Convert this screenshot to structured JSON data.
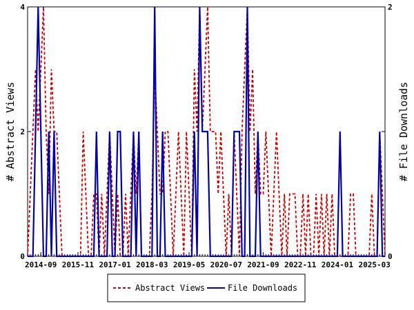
{
  "chart_data": {
    "type": "line",
    "title": "",
    "ylabel_left": "# Abstract Views",
    "ylabel_right": "# File Downloads",
    "ylim_left": [
      0,
      4
    ],
    "ylim_right": [
      0,
      2
    ],
    "yticks_left": [
      "0",
      "2",
      "4"
    ],
    "yticks_right": [
      "0",
      "1",
      "2"
    ],
    "x_range": [
      "2014-04",
      "2025-07"
    ],
    "x_tick_labels": [
      "2014-09",
      "2015-11",
      "2017-01",
      "2018-03",
      "2019-05",
      "2020-07",
      "2021-09",
      "2022-11",
      "2024-01",
      "2025-03"
    ],
    "grid": false,
    "legend_position": "bottom",
    "series": [
      {
        "name": "Abstract Views",
        "axis": "left",
        "color": "#cc0000",
        "style": "dashed",
        "points": [
          [
            "2014-04",
            0
          ],
          [
            "2014-05",
            1
          ],
          [
            "2014-06",
            2
          ],
          [
            "2014-07",
            3
          ],
          [
            "2014-08",
            2
          ],
          [
            "2014-09",
            3
          ],
          [
            "2014-10",
            4
          ],
          [
            "2014-11",
            2
          ],
          [
            "2014-12",
            1
          ],
          [
            "2015-01",
            3
          ],
          [
            "2015-02",
            2
          ],
          [
            "2015-03",
            2
          ],
          [
            "2015-04",
            1
          ],
          [
            "2015-05",
            0
          ],
          [
            "2015-06",
            0
          ],
          [
            "2015-07",
            0
          ],
          [
            "2015-08",
            0
          ],
          [
            "2015-09",
            0
          ],
          [
            "2015-10",
            0
          ],
          [
            "2015-11",
            0
          ],
          [
            "2015-12",
            0
          ],
          [
            "2016-01",
            2
          ],
          [
            "2016-02",
            1
          ],
          [
            "2016-03",
            0
          ],
          [
            "2016-04",
            0
          ],
          [
            "2016-05",
            1
          ],
          [
            "2016-06",
            1
          ],
          [
            "2016-07",
            0
          ],
          [
            "2016-08",
            1
          ],
          [
            "2016-09",
            0
          ],
          [
            "2016-10",
            1
          ],
          [
            "2016-11",
            2
          ],
          [
            "2016-12",
            1
          ],
          [
            "2017-01",
            0
          ],
          [
            "2017-02",
            1
          ],
          [
            "2017-03",
            0
          ],
          [
            "2017-04",
            0
          ],
          [
            "2017-05",
            1
          ],
          [
            "2017-06",
            0
          ],
          [
            "2017-07",
            1
          ],
          [
            "2017-08",
            2
          ],
          [
            "2017-09",
            1
          ],
          [
            "2017-10",
            2
          ],
          [
            "2017-11",
            0
          ],
          [
            "2017-12",
            0
          ],
          [
            "2018-01",
            0
          ],
          [
            "2018-02",
            0
          ],
          [
            "2018-03",
            1
          ],
          [
            "2018-04",
            3
          ],
          [
            "2018-05",
            2
          ],
          [
            "2018-06",
            1
          ],
          [
            "2018-07",
            1
          ],
          [
            "2018-08",
            2
          ],
          [
            "2018-09",
            2
          ],
          [
            "2018-10",
            1
          ],
          [
            "2018-11",
            0
          ],
          [
            "2018-12",
            1
          ],
          [
            "2019-01",
            2
          ],
          [
            "2019-02",
            1
          ],
          [
            "2019-03",
            0
          ],
          [
            "2019-04",
            2
          ],
          [
            "2019-05",
            1
          ],
          [
            "2019-06",
            0
          ],
          [
            "2019-07",
            3
          ],
          [
            "2019-08",
            2
          ],
          [
            "2019-09",
            4
          ],
          [
            "2019-10",
            2
          ],
          [
            "2019-11",
            3
          ],
          [
            "2019-12",
            4
          ],
          [
            "2020-01",
            2
          ],
          [
            "2020-02",
            2
          ],
          [
            "2020-03",
            2
          ],
          [
            "2020-04",
            1
          ],
          [
            "2020-05",
            2
          ],
          [
            "2020-06",
            1
          ],
          [
            "2020-07",
            0
          ],
          [
            "2020-08",
            1
          ],
          [
            "2020-09",
            0
          ],
          [
            "2020-10",
            2
          ],
          [
            "2020-11",
            1
          ],
          [
            "2020-12",
            0
          ],
          [
            "2021-01",
            2
          ],
          [
            "2021-02",
            3
          ],
          [
            "2021-03",
            4
          ],
          [
            "2021-04",
            2
          ],
          [
            "2021-05",
            3
          ],
          [
            "2021-06",
            1
          ],
          [
            "2021-07",
            2
          ],
          [
            "2021-08",
            1
          ],
          [
            "2021-09",
            1
          ],
          [
            "2021-10",
            2
          ],
          [
            "2021-11",
            1
          ],
          [
            "2021-12",
            0
          ],
          [
            "2022-01",
            1
          ],
          [
            "2022-02",
            2
          ],
          [
            "2022-03",
            1
          ],
          [
            "2022-04",
            0
          ],
          [
            "2022-05",
            1
          ],
          [
            "2022-06",
            0
          ],
          [
            "2022-07",
            1
          ],
          [
            "2022-08",
            1
          ],
          [
            "2022-09",
            1
          ],
          [
            "2022-10",
            0
          ],
          [
            "2022-11",
            0
          ],
          [
            "2022-12",
            1
          ],
          [
            "2023-01",
            0
          ],
          [
            "2023-02",
            1
          ],
          [
            "2023-03",
            0
          ],
          [
            "2023-04",
            0
          ],
          [
            "2023-05",
            1
          ],
          [
            "2023-06",
            0
          ],
          [
            "2023-07",
            1
          ],
          [
            "2023-08",
            0
          ],
          [
            "2023-09",
            1
          ],
          [
            "2023-10",
            0
          ],
          [
            "2023-11",
            1
          ],
          [
            "2023-12",
            0
          ],
          [
            "2024-01",
            0
          ],
          [
            "2024-02",
            0
          ],
          [
            "2024-03",
            0
          ],
          [
            "2024-04",
            0
          ],
          [
            "2024-05",
            0
          ],
          [
            "2024-06",
            1
          ],
          [
            "2024-07",
            1
          ],
          [
            "2024-08",
            0
          ],
          [
            "2024-09",
            0
          ],
          [
            "2024-10",
            0
          ],
          [
            "2024-11",
            0
          ],
          [
            "2024-12",
            0
          ],
          [
            "2025-01",
            0
          ],
          [
            "2025-02",
            1
          ],
          [
            "2025-03",
            0
          ],
          [
            "2025-04",
            0
          ],
          [
            "2025-05",
            2
          ],
          [
            "2025-06",
            1
          ],
          [
            "2025-07",
            0
          ]
        ]
      },
      {
        "name": "File Downloads",
        "axis": "right",
        "color": "#0000aa",
        "style": "solid",
        "points": [
          [
            "2014-04",
            0
          ],
          [
            "2014-05",
            0
          ],
          [
            "2014-06",
            0
          ],
          [
            "2014-07",
            1
          ],
          [
            "2014-08",
            2
          ],
          [
            "2014-09",
            1
          ],
          [
            "2014-10",
            0
          ],
          [
            "2014-11",
            0
          ],
          [
            "2014-12",
            1
          ],
          [
            "2015-01",
            0
          ],
          [
            "2015-02",
            1
          ],
          [
            "2015-03",
            0
          ],
          [
            "2015-04",
            0
          ],
          [
            "2015-05",
            0
          ],
          [
            "2015-06",
            0
          ],
          [
            "2015-07",
            0
          ],
          [
            "2015-08",
            0
          ],
          [
            "2015-09",
            0
          ],
          [
            "2015-10",
            0
          ],
          [
            "2015-11",
            0
          ],
          [
            "2015-12",
            0
          ],
          [
            "2016-01",
            0
          ],
          [
            "2016-02",
            0
          ],
          [
            "2016-03",
            0
          ],
          [
            "2016-04",
            0
          ],
          [
            "2016-05",
            0
          ],
          [
            "2016-06",
            1
          ],
          [
            "2016-07",
            0
          ],
          [
            "2016-08",
            0
          ],
          [
            "2016-09",
            0
          ],
          [
            "2016-10",
            0
          ],
          [
            "2016-11",
            1
          ],
          [
            "2016-12",
            0
          ],
          [
            "2017-01",
            0
          ],
          [
            "2017-02",
            1
          ],
          [
            "2017-03",
            1
          ],
          [
            "2017-04",
            0
          ],
          [
            "2017-05",
            0
          ],
          [
            "2017-06",
            0
          ],
          [
            "2017-07",
            0
          ],
          [
            "2017-08",
            1
          ],
          [
            "2017-09",
            0
          ],
          [
            "2017-10",
            1
          ],
          [
            "2017-11",
            0
          ],
          [
            "2017-12",
            0
          ],
          [
            "2018-01",
            0
          ],
          [
            "2018-02",
            0
          ],
          [
            "2018-03",
            0
          ],
          [
            "2018-04",
            2
          ],
          [
            "2018-05",
            0
          ],
          [
            "2018-06",
            0
          ],
          [
            "2018-07",
            1
          ],
          [
            "2018-08",
            0
          ],
          [
            "2018-09",
            0
          ],
          [
            "2018-10",
            0
          ],
          [
            "2018-11",
            0
          ],
          [
            "2018-12",
            0
          ],
          [
            "2019-01",
            0
          ],
          [
            "2019-02",
            0
          ],
          [
            "2019-03",
            0
          ],
          [
            "2019-04",
            0
          ],
          [
            "2019-05",
            0
          ],
          [
            "2019-06",
            0
          ],
          [
            "2019-07",
            1
          ],
          [
            "2019-08",
            0
          ],
          [
            "2019-09",
            2
          ],
          [
            "2019-10",
            1
          ],
          [
            "2019-11",
            1
          ],
          [
            "2019-12",
            1
          ],
          [
            "2020-01",
            0
          ],
          [
            "2020-02",
            0
          ],
          [
            "2020-03",
            0
          ],
          [
            "2020-04",
            0
          ],
          [
            "2020-05",
            0
          ],
          [
            "2020-06",
            0
          ],
          [
            "2020-07",
            0
          ],
          [
            "2020-08",
            0
          ],
          [
            "2020-09",
            0
          ],
          [
            "2020-10",
            1
          ],
          [
            "2020-11",
            1
          ],
          [
            "2020-12",
            1
          ],
          [
            "2021-01",
            0
          ],
          [
            "2021-02",
            0
          ],
          [
            "2021-03",
            2
          ],
          [
            "2021-04",
            0
          ],
          [
            "2021-05",
            0
          ],
          [
            "2021-06",
            0
          ],
          [
            "2021-07",
            1
          ],
          [
            "2021-08",
            0
          ],
          [
            "2021-09",
            0
          ],
          [
            "2021-10",
            0
          ],
          [
            "2021-11",
            0
          ],
          [
            "2021-12",
            0
          ],
          [
            "2022-01",
            0
          ],
          [
            "2022-02",
            0
          ],
          [
            "2022-03",
            0
          ],
          [
            "2022-04",
            0
          ],
          [
            "2022-05",
            0
          ],
          [
            "2022-06",
            0
          ],
          [
            "2022-07",
            0
          ],
          [
            "2022-08",
            0
          ],
          [
            "2022-09",
            0
          ],
          [
            "2022-10",
            0
          ],
          [
            "2022-11",
            0
          ],
          [
            "2022-12",
            0
          ],
          [
            "2023-01",
            0
          ],
          [
            "2023-02",
            0
          ],
          [
            "2023-03",
            0
          ],
          [
            "2023-04",
            0
          ],
          [
            "2023-05",
            0
          ],
          [
            "2023-06",
            0
          ],
          [
            "2023-07",
            0
          ],
          [
            "2023-08",
            0
          ],
          [
            "2023-09",
            0
          ],
          [
            "2023-10",
            0
          ],
          [
            "2023-11",
            0
          ],
          [
            "2023-12",
            0
          ],
          [
            "2024-01",
            0
          ],
          [
            "2024-02",
            1
          ],
          [
            "2024-03",
            0
          ],
          [
            "2024-04",
            0
          ],
          [
            "2024-05",
            0
          ],
          [
            "2024-06",
            0
          ],
          [
            "2024-07",
            0
          ],
          [
            "2024-08",
            0
          ],
          [
            "2024-09",
            0
          ],
          [
            "2024-10",
            0
          ],
          [
            "2024-11",
            0
          ],
          [
            "2024-12",
            0
          ],
          [
            "2025-01",
            0
          ],
          [
            "2025-02",
            0
          ],
          [
            "2025-03",
            0
          ],
          [
            "2025-04",
            0
          ],
          [
            "2025-05",
            1
          ],
          [
            "2025-06",
            0
          ],
          [
            "2025-07",
            0
          ]
        ]
      }
    ]
  }
}
